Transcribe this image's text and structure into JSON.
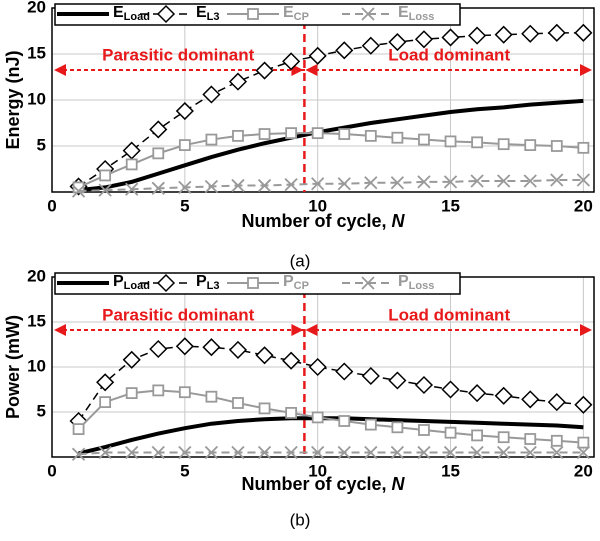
{
  "chart_data": [
    {
      "type": "line",
      "ylabel": "Energy (nJ)",
      "xlabel": "Number of cycle, N",
      "caption": "(a)",
      "xlim": [
        0,
        20.4
      ],
      "ylim": [
        0,
        20
      ],
      "xticks": [
        0,
        5,
        10,
        15,
        20
      ],
      "yticks": [
        5,
        10,
        15,
        20
      ],
      "grid": true,
      "annotations": [
        "Parasitic dominant",
        "Load dominant"
      ],
      "annotation_color": "#e8191b",
      "x": [
        1,
        2,
        3,
        4,
        5,
        6,
        7,
        8,
        9,
        10,
        11,
        12,
        13,
        14,
        15,
        16,
        17,
        18,
        19,
        20
      ],
      "series": [
        {
          "name": "ELoad",
          "color": "#000000",
          "marker": "none",
          "dash": false,
          "width": 4,
          "values": [
            0.2,
            0.5,
            1.1,
            2,
            2.9,
            3.8,
            4.6,
            5.3,
            5.9,
            6.5,
            7,
            7.5,
            7.9,
            8.3,
            8.7,
            9,
            9.2,
            9.5,
            9.7,
            9.9
          ]
        },
        {
          "name": "EL3",
          "color": "#000000",
          "marker": "diamond",
          "dash": true,
          "width": 1.5,
          "values": [
            0.6,
            2.5,
            4.5,
            6.8,
            8.8,
            10.6,
            12,
            13.2,
            14.2,
            14.8,
            15.4,
            15.9,
            16.3,
            16.6,
            16.8,
            17,
            17.1,
            17.2,
            17.3,
            17.3
          ]
        },
        {
          "name": "ECP",
          "color": "#999999",
          "marker": "square",
          "dash": false,
          "width": 2,
          "values": [
            0.5,
            1.8,
            3,
            4.2,
            5.1,
            5.7,
            6.1,
            6.3,
            6.4,
            6.4,
            6.3,
            6.1,
            5.9,
            5.7,
            5.5,
            5.4,
            5.2,
            5.1,
            5,
            4.8
          ]
        },
        {
          "name": "ELoss",
          "color": "#999999",
          "marker": "x",
          "dash": true,
          "width": 2,
          "values": [
            0.1,
            0.2,
            0.3,
            0.4,
            0.5,
            0.6,
            0.7,
            0.7,
            0.8,
            0.9,
            0.9,
            1,
            1,
            1.1,
            1.1,
            1.2,
            1.2,
            1.2,
            1.3,
            1.3
          ]
        }
      ]
    },
    {
      "type": "line",
      "ylabel": "Power (mW)",
      "xlabel": "Number of cycle, N",
      "caption": "(b)",
      "xlim": [
        0,
        20.4
      ],
      "ylim": [
        0,
        20
      ],
      "xticks": [
        0,
        5,
        10,
        15,
        20
      ],
      "yticks": [
        5,
        10,
        15,
        20
      ],
      "grid": true,
      "annotations": [
        "Parasitic dominant",
        "Load dominant"
      ],
      "annotation_color": "#e8191b",
      "x": [
        1,
        2,
        3,
        4,
        5,
        6,
        7,
        8,
        9,
        10,
        11,
        12,
        13,
        14,
        15,
        16,
        17,
        18,
        19,
        20
      ],
      "series": [
        {
          "name": "PLoad",
          "color": "#000000",
          "marker": "none",
          "dash": false,
          "width": 4,
          "values": [
            0.4,
            1.1,
            1.9,
            2.6,
            3.2,
            3.7,
            4,
            4.2,
            4.3,
            4.3,
            4.3,
            4.2,
            4.1,
            4,
            3.9,
            3.8,
            3.7,
            3.6,
            3.5,
            3.3
          ]
        },
        {
          "name": "PL3",
          "color": "#000000",
          "marker": "diamond",
          "dash": true,
          "width": 1.5,
          "values": [
            4,
            8.3,
            10.8,
            12,
            12.3,
            12.2,
            11.9,
            11.3,
            10.7,
            10,
            9.5,
            9,
            8.5,
            8,
            7.5,
            7.1,
            6.8,
            6.4,
            6.1,
            5.8
          ]
        },
        {
          "name": "PCP",
          "color": "#999999",
          "marker": "square",
          "dash": false,
          "width": 2,
          "values": [
            3.1,
            6.1,
            7.1,
            7.4,
            7.2,
            6.7,
            6,
            5.4,
            4.9,
            4.4,
            4,
            3.6,
            3.3,
            3,
            2.7,
            2.4,
            2.2,
            2,
            1.8,
            1.6
          ]
        },
        {
          "name": "PLoss",
          "color": "#999999",
          "marker": "x",
          "dash": true,
          "width": 2,
          "values": [
            0.3,
            0.5,
            0.5,
            0.5,
            0.5,
            0.5,
            0.5,
            0.5,
            0.5,
            0.5,
            0.5,
            0.5,
            0.5,
            0.5,
            0.5,
            0.5,
            0.5,
            0.5,
            0.5,
            0.5
          ]
        }
      ]
    }
  ]
}
